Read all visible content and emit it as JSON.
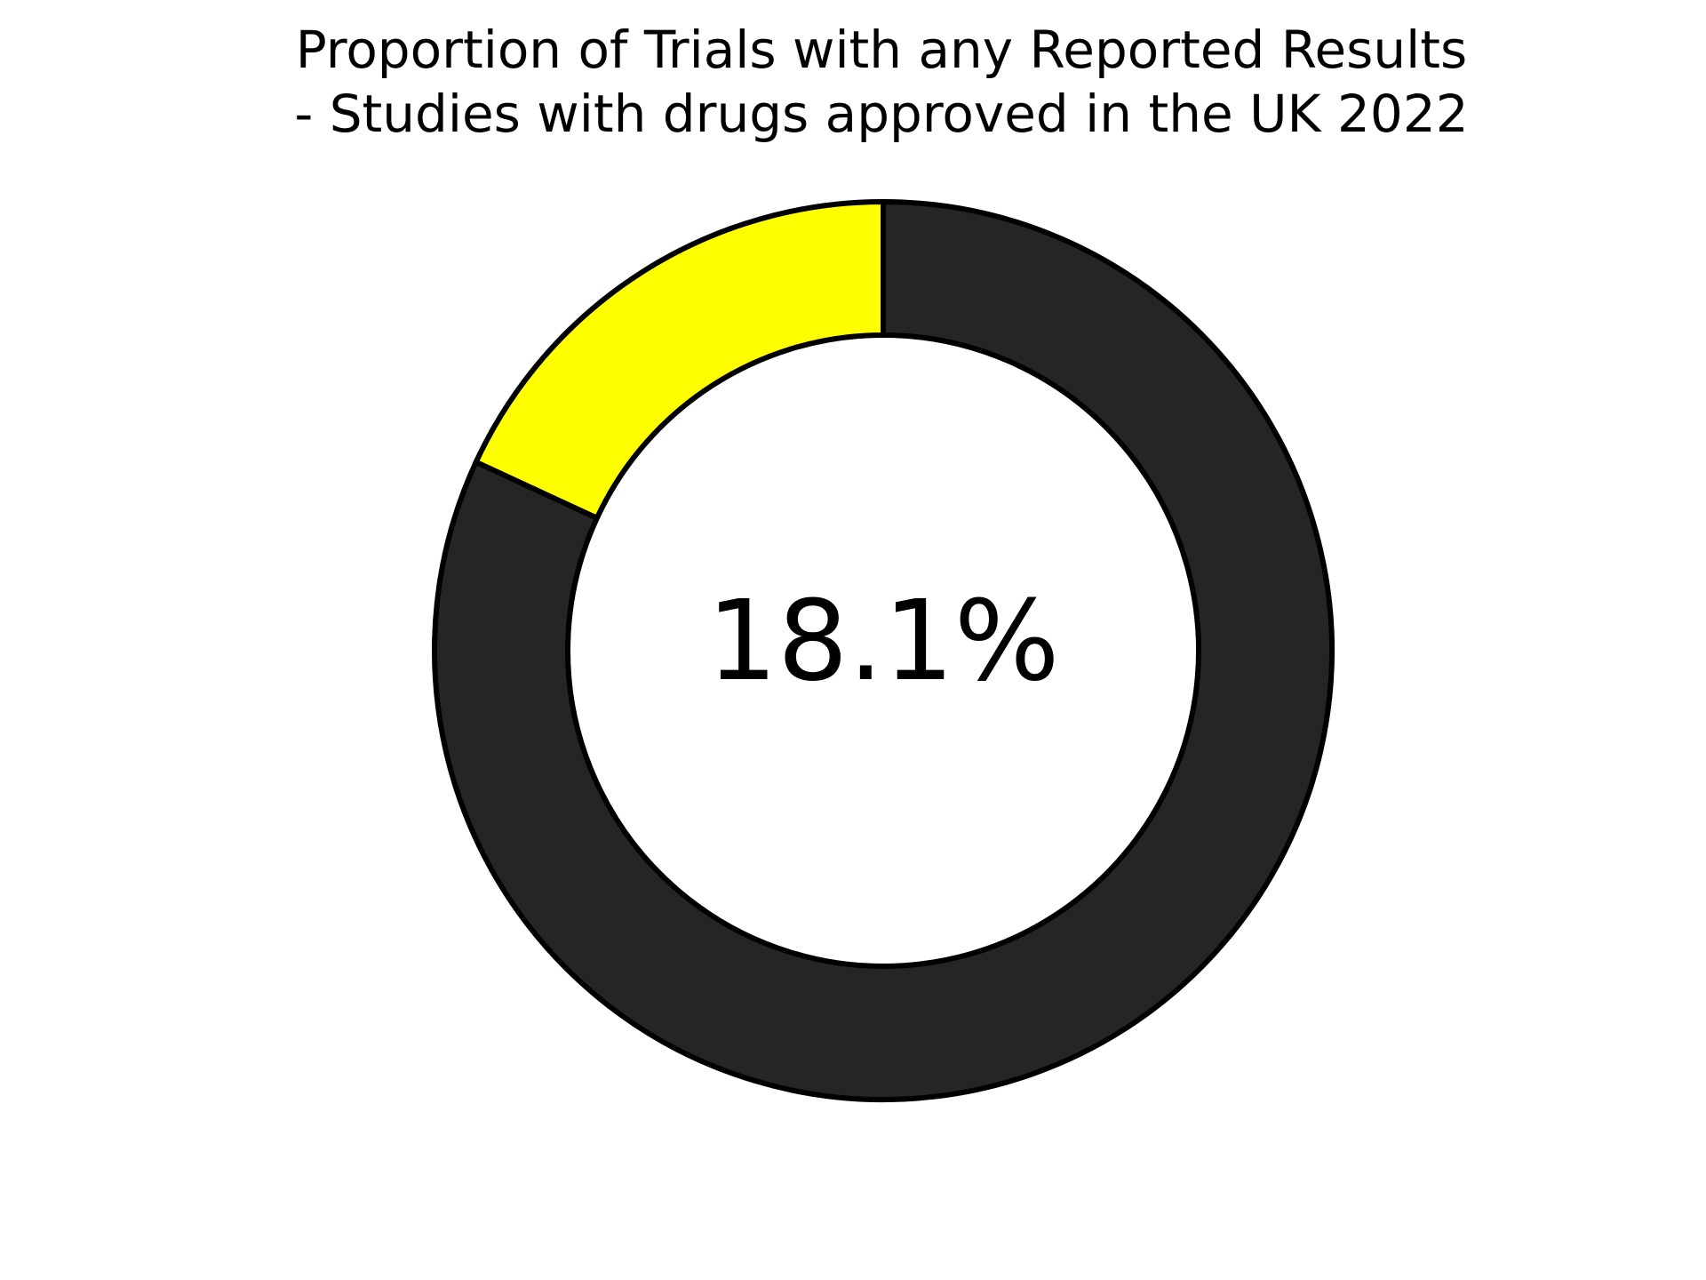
{
  "chart_data": {
    "type": "pie",
    "title_lines": [
      "Proportion of Trials with any Reported Results",
      "- Studies with drugs approved in the UK 2022"
    ],
    "donut": true,
    "center_label": "18.1%",
    "slices": [
      {
        "value": 18.1,
        "color": "#ffff00"
      },
      {
        "value": 81.9,
        "color": "#252525"
      }
    ],
    "edge_color": "#000000"
  }
}
